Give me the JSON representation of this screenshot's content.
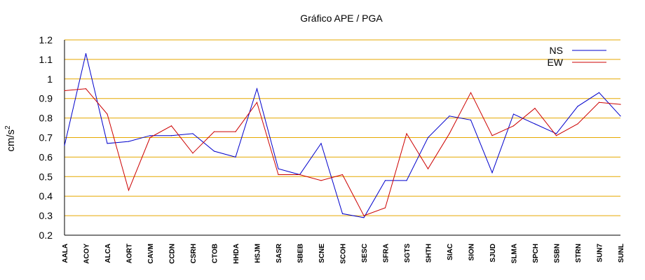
{
  "chart_data": {
    "type": "line",
    "title": "Gráfico  APE / PGA",
    "xlabel": "",
    "ylabel": "cm/s",
    "ylabel_superscript": "2",
    "ylim": [
      0.2,
      1.2
    ],
    "yticks": [
      "0.2",
      "0.3",
      "0.4",
      "0.5",
      "0.6",
      "0.7",
      "0.8",
      "0.9",
      "1",
      "1.1",
      "1.2"
    ],
    "grid": true,
    "legend_position": "top-right",
    "categories": [
      "AALA",
      "ACOY",
      "ALCA",
      "AORT",
      "CAVM",
      "CCDN",
      "CSRH",
      "CTOB",
      "HHDA",
      "HSJM",
      "SASR",
      "SBEB",
      "SCNE",
      "SCOH",
      "SESC",
      "SFRA",
      "SGTS",
      "SHTH",
      "SIAC",
      "SION",
      "SJUD",
      "SLMA",
      "SPCH",
      "SSBN",
      "STRN",
      "SUN7",
      "SUNL"
    ],
    "series": [
      {
        "name": "NS",
        "color": "#0000cc",
        "values": [
          0.66,
          1.13,
          0.67,
          0.68,
          0.71,
          0.71,
          0.72,
          0.63,
          0.6,
          0.95,
          0.54,
          0.51,
          0.67,
          0.31,
          0.29,
          0.48,
          0.48,
          0.7,
          0.81,
          0.79,
          0.52,
          0.82,
          0.77,
          0.72,
          0.86,
          0.93,
          0.81
        ]
      },
      {
        "name": "EW",
        "color": "#cc0000",
        "values": [
          0.94,
          0.95,
          0.82,
          0.43,
          0.7,
          0.76,
          0.62,
          0.73,
          0.73,
          0.88,
          0.51,
          0.51,
          0.48,
          0.51,
          0.3,
          0.34,
          0.72,
          0.54,
          0.72,
          0.93,
          0.71,
          0.76,
          0.85,
          0.71,
          0.77,
          0.88,
          0.87
        ]
      }
    ]
  },
  "colors": {
    "grid": "#e6a800",
    "axis": "#000000"
  }
}
